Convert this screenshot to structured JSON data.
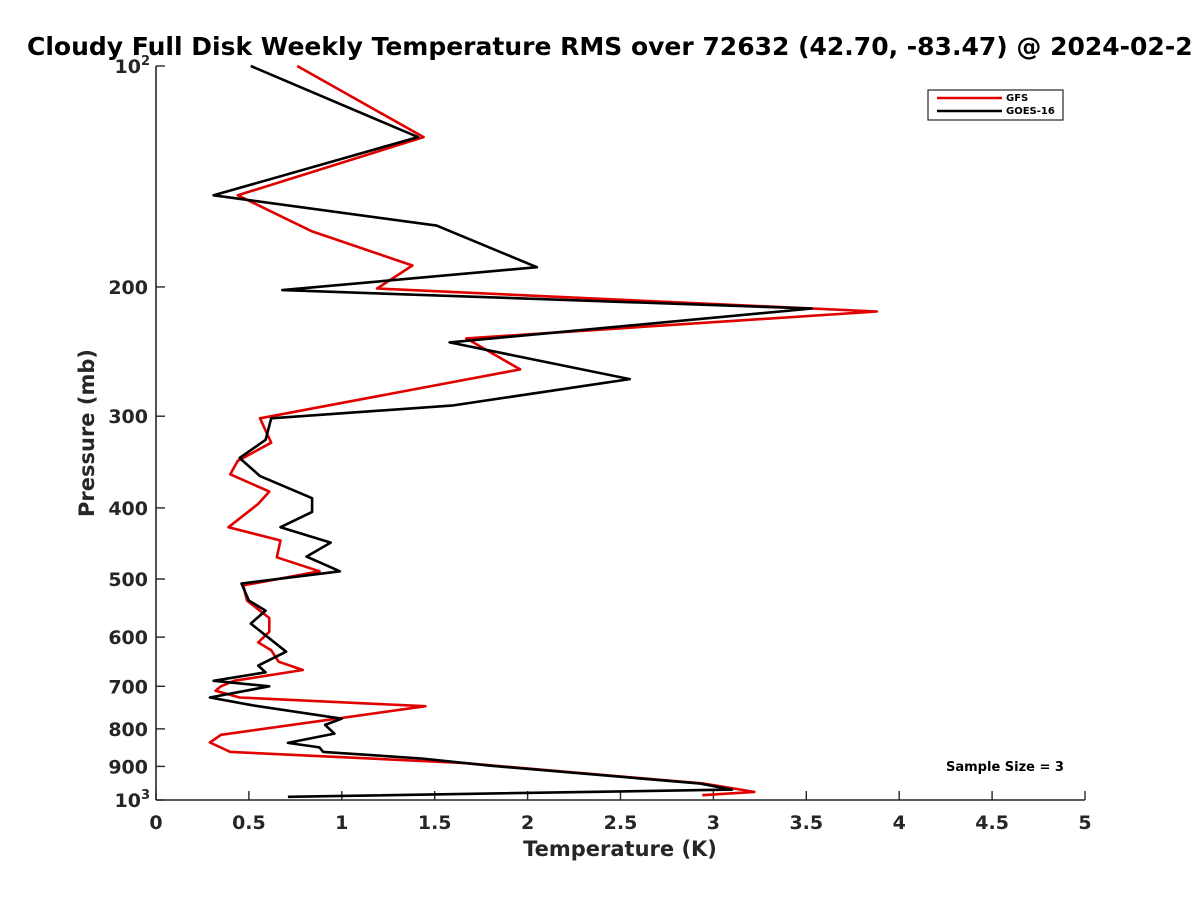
{
  "chart_data": {
    "type": "line",
    "title": "Cloudy Full Disk Weekly Temperature RMS over 72632 (42.70, -83.47) @ 2024-02-2",
    "xlabel": "Temperature (K)",
    "ylabel": "Pressure (mb)",
    "xlim": [
      0,
      5
    ],
    "ylim": [
      100,
      1000
    ],
    "y_scale": "log",
    "y_reversed": true,
    "grid": false,
    "legend_position": "top-right",
    "x_ticks": [
      {
        "value": 0,
        "label": "0"
      },
      {
        "value": 0.5,
        "label": "0.5"
      },
      {
        "value": 1,
        "label": "1"
      },
      {
        "value": 1.5,
        "label": "1.5"
      },
      {
        "value": 2,
        "label": "2"
      },
      {
        "value": 2.5,
        "label": "2.5"
      },
      {
        "value": 3,
        "label": "3"
      },
      {
        "value": 3.5,
        "label": "3.5"
      },
      {
        "value": 4,
        "label": "4"
      },
      {
        "value": 4.5,
        "label": "4.5"
      },
      {
        "value": 5,
        "label": "5"
      }
    ],
    "y_ticks": [
      {
        "value": 100,
        "base": "10",
        "exp": "2"
      },
      {
        "value": 200,
        "label": "200"
      },
      {
        "value": 300,
        "label": "300"
      },
      {
        "value": 400,
        "label": "400"
      },
      {
        "value": 500,
        "label": "500"
      },
      {
        "value": 600,
        "label": "600"
      },
      {
        "value": 700,
        "label": "700"
      },
      {
        "value": 800,
        "label": "800"
      },
      {
        "value": 900,
        "label": "900"
      },
      {
        "value": 1000,
        "base": "10",
        "exp": "3"
      }
    ],
    "annotation": "Sample Size = 3",
    "series": [
      {
        "name": "GFS",
        "color": "#e00000",
        "points": [
          [
            0.76,
            100
          ],
          [
            1.44,
            125
          ],
          [
            0.44,
            150
          ],
          [
            0.84,
            168
          ],
          [
            1.38,
            187
          ],
          [
            1.19,
            201
          ],
          [
            3.88,
            216
          ],
          [
            1.67,
            235
          ],
          [
            1.96,
            259
          ],
          [
            0.56,
            302
          ],
          [
            0.62,
            326
          ],
          [
            0.44,
            345
          ],
          [
            0.4,
            360
          ],
          [
            0.61,
            380
          ],
          [
            0.55,
            395
          ],
          [
            0.39,
            425
          ],
          [
            0.67,
            443
          ],
          [
            0.65,
            467
          ],
          [
            0.88,
            488
          ],
          [
            0.47,
            510
          ],
          [
            0.49,
            535
          ],
          [
            0.61,
            565
          ],
          [
            0.61,
            590
          ],
          [
            0.55,
            610
          ],
          [
            0.62,
            625
          ],
          [
            0.66,
            648
          ],
          [
            0.79,
            665
          ],
          [
            0.42,
            688
          ],
          [
            0.35,
            700
          ],
          [
            0.32,
            710
          ],
          [
            0.45,
            725
          ],
          [
            1.45,
            745
          ],
          [
            0.35,
            815
          ],
          [
            0.29,
            835
          ],
          [
            0.4,
            860
          ],
          [
            1.65,
            890
          ],
          [
            2.95,
            950
          ],
          [
            3.22,
            975
          ],
          [
            2.94,
            985
          ]
        ]
      },
      {
        "name": "GOES-16",
        "color": "#000000",
        "points": [
          [
            0.51,
            100
          ],
          [
            1.41,
            125
          ],
          [
            0.31,
            150
          ],
          [
            1.51,
            165
          ],
          [
            2.05,
            188
          ],
          [
            0.68,
            202
          ],
          [
            3.53,
            214
          ],
          [
            1.58,
            238
          ],
          [
            2.55,
            267
          ],
          [
            1.6,
            290
          ],
          [
            0.62,
            302
          ],
          [
            0.59,
            323
          ],
          [
            0.45,
            342
          ],
          [
            0.56,
            362
          ],
          [
            0.84,
            388
          ],
          [
            0.84,
            405
          ],
          [
            0.67,
            425
          ],
          [
            0.94,
            446
          ],
          [
            0.81,
            466
          ],
          [
            0.99,
            488
          ],
          [
            0.46,
            507
          ],
          [
            0.5,
            535
          ],
          [
            0.59,
            552
          ],
          [
            0.51,
            575
          ],
          [
            0.7,
            628
          ],
          [
            0.55,
            656
          ],
          [
            0.59,
            670
          ],
          [
            0.31,
            688
          ],
          [
            0.61,
            700
          ],
          [
            0.29,
            725
          ],
          [
            0.52,
            743
          ],
          [
            1.0,
            775
          ],
          [
            0.91,
            790
          ],
          [
            0.96,
            812
          ],
          [
            0.71,
            836
          ],
          [
            0.88,
            848
          ],
          [
            0.9,
            860
          ],
          [
            1.43,
            878
          ],
          [
            1.8,
            898
          ],
          [
            2.93,
            950
          ],
          [
            3.1,
            968
          ],
          [
            0.71,
            990
          ]
        ]
      }
    ]
  }
}
